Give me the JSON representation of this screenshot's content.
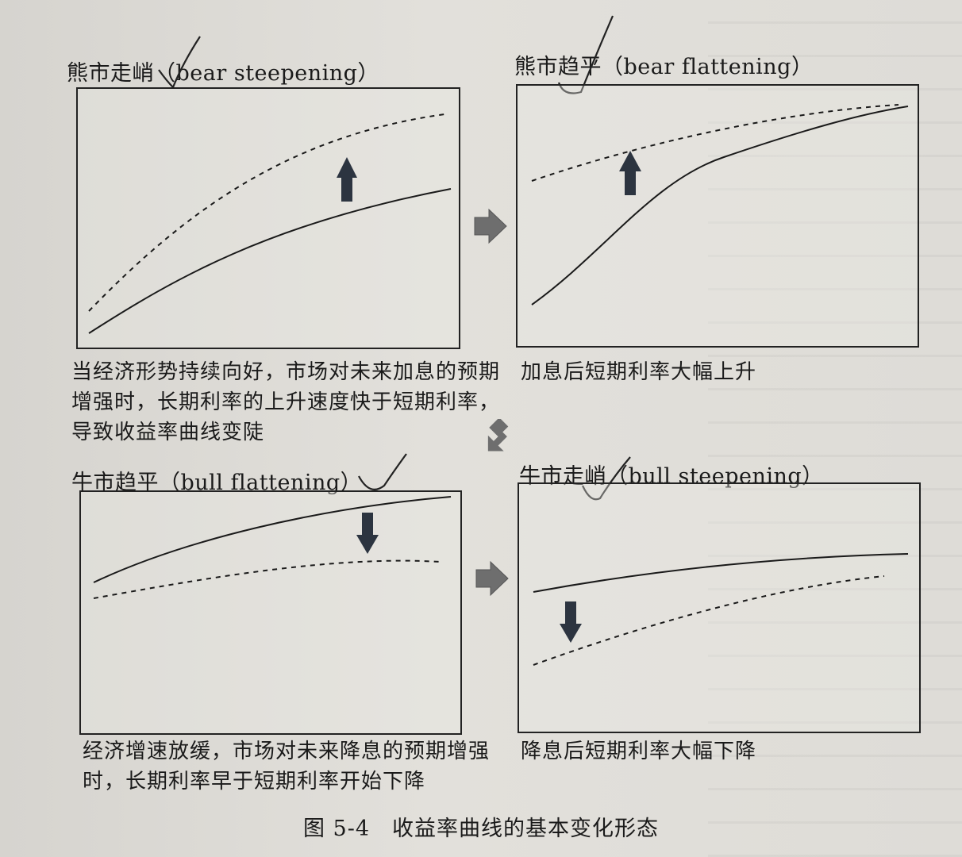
{
  "panels": [
    {
      "key": "bear_steepening",
      "title": "熊市走峭（bear steepening）",
      "caption": "当经济形势持续向好，市场对未来加息的预期增强时，长期利率的上升速度快于短期利率，导致收益率曲线变陡",
      "shift": "up"
    },
    {
      "key": "bear_flattening",
      "title": "熊市趋平（bear flattening）",
      "caption": "加息后短期利率大幅上升",
      "shift": "up"
    },
    {
      "key": "bull_flattening",
      "title": "牛市趋平（bull flattening）",
      "caption": "经济增速放缓，市场对未来降息的预期增强时，长期利率早于短期利率开始下降",
      "shift": "down"
    },
    {
      "key": "bull_steepening",
      "title": "牛市走峭（bull steepening）",
      "caption": "降息后短期利率大幅下降",
      "shift": "down"
    }
  ],
  "figure_caption": "图 5-4　收益率曲线的基本变化形态",
  "line_styles": {
    "solid": "solid",
    "dashed": "dashed"
  },
  "colors": {
    "ink": "#1a1a1a",
    "arrow_gray": "#6e6e6e",
    "arrow_dark": "#2c3440",
    "paper": "#e0ded9"
  }
}
